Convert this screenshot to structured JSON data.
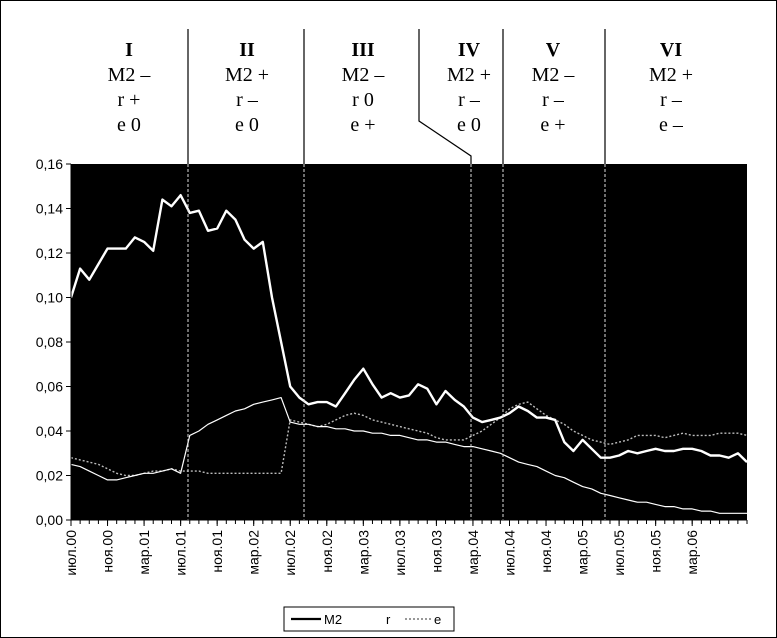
{
  "chart_data": {
    "type": "line",
    "title": "",
    "xlabel": "",
    "ylabel": "",
    "ylim": [
      0,
      0.16
    ],
    "yticks": [
      "0,00",
      "0,02",
      "0,04",
      "0,06",
      "0,08",
      "0,10",
      "0,12",
      "0,14",
      "0,16"
    ],
    "xticks": [
      "июл.00",
      "ноя.00",
      "мар.01",
      "июл.01",
      "ноя.01",
      "мар.02",
      "июл.02",
      "ноя.02",
      "мар.03",
      "июл.03",
      "ноя.03",
      "мар.04",
      "июл.04",
      "ноя.04",
      "мар.05",
      "июл.05",
      "ноя.05",
      "мар.06"
    ],
    "x_start": "июл.00",
    "x_step": "month",
    "grid": false,
    "legend_position": "bottom-center",
    "colors": {
      "plot_background": "#000000",
      "M2": "#ffffff",
      "r": "#ffffff",
      "e": "#bbbbbb",
      "divider": "#000000"
    },
    "series": [
      {
        "name": "M2",
        "values": [
          0.1,
          0.113,
          0.108,
          0.115,
          0.122,
          0.122,
          0.122,
          0.127,
          0.125,
          0.121,
          0.144,
          0.141,
          0.146,
          0.138,
          0.139,
          0.13,
          0.131,
          0.139,
          0.135,
          0.126,
          0.122,
          0.125,
          0.1,
          0.08,
          0.06,
          0.055,
          0.052,
          0.053,
          0.053,
          0.051,
          0.057,
          0.063,
          0.068,
          0.061,
          0.055,
          0.057,
          0.055,
          0.056,
          0.061,
          0.059,
          0.052,
          0.058,
          0.054,
          0.051,
          0.046,
          0.044,
          0.045,
          0.046,
          0.048,
          0.051,
          0.049,
          0.046,
          0.046,
          0.045,
          0.035,
          0.031,
          0.036,
          0.032,
          0.028,
          0.028,
          0.029,
          0.031,
          0.03,
          0.031,
          0.032,
          0.031,
          0.031,
          0.032,
          0.032,
          0.031,
          0.029,
          0.029,
          0.028,
          0.03,
          0.026
        ]
      },
      {
        "name": "r",
        "values": [
          0.025,
          0.024,
          0.022,
          0.02,
          0.018,
          0.018,
          0.019,
          0.02,
          0.021,
          0.021,
          0.022,
          0.023,
          0.021,
          0.038,
          0.04,
          0.043,
          0.045,
          0.047,
          0.049,
          0.05,
          0.052,
          0.053,
          0.054,
          0.055,
          0.044,
          0.043,
          0.043,
          0.042,
          0.042,
          0.041,
          0.041,
          0.04,
          0.04,
          0.039,
          0.039,
          0.038,
          0.038,
          0.037,
          0.036,
          0.036,
          0.035,
          0.035,
          0.034,
          0.033,
          0.033,
          0.032,
          0.031,
          0.03,
          0.028,
          0.026,
          0.025,
          0.024,
          0.022,
          0.02,
          0.019,
          0.017,
          0.015,
          0.014,
          0.012,
          0.011,
          0.01,
          0.009,
          0.008,
          0.008,
          0.007,
          0.006,
          0.006,
          0.005,
          0.005,
          0.004,
          0.004,
          0.003,
          0.003,
          0.003,
          0.003
        ]
      },
      {
        "name": "e",
        "values": [
          0.028,
          0.027,
          0.026,
          0.025,
          0.023,
          0.021,
          0.02,
          0.02,
          0.021,
          0.022,
          0.022,
          0.023,
          0.022,
          0.022,
          0.022,
          0.021,
          0.021,
          0.021,
          0.021,
          0.021,
          0.021,
          0.021,
          0.021,
          0.021,
          0.045,
          0.044,
          0.043,
          0.042,
          0.043,
          0.045,
          0.047,
          0.048,
          0.047,
          0.045,
          0.044,
          0.043,
          0.042,
          0.041,
          0.04,
          0.039,
          0.037,
          0.036,
          0.036,
          0.036,
          0.038,
          0.04,
          0.043,
          0.046,
          0.05,
          0.052,
          0.053,
          0.05,
          0.047,
          0.045,
          0.043,
          0.04,
          0.038,
          0.036,
          0.035,
          0.034,
          0.035,
          0.036,
          0.038,
          0.038,
          0.038,
          0.037,
          0.038,
          0.039,
          0.038,
          0.038,
          0.038,
          0.039,
          0.039,
          0.039,
          0.038
        ]
      }
    ],
    "phases": [
      {
        "roman": "I",
        "m2": "M2 –",
        "r": "r +",
        "e": "e 0"
      },
      {
        "roman": "II",
        "m2": "M2 +",
        "r": "r –",
        "e": "e 0"
      },
      {
        "roman": "III",
        "m2": "M2 –",
        "r": "r 0",
        "e": "e +"
      },
      {
        "roman": "IV",
        "m2": "M2 +",
        "r": "r –",
        "e": "e 0"
      },
      {
        "roman": "V",
        "m2": "M2 –",
        "r": "r –",
        "e": "e +"
      },
      {
        "roman": "VI",
        "m2": "M2 +",
        "r": "r –",
        "e": "e –"
      }
    ],
    "phase_boundaries": [
      "июл.01",
      "июл.02",
      "ноя.03",
      "мар.04",
      "мар.05"
    ],
    "legend": [
      "M2",
      "r",
      "e"
    ]
  }
}
